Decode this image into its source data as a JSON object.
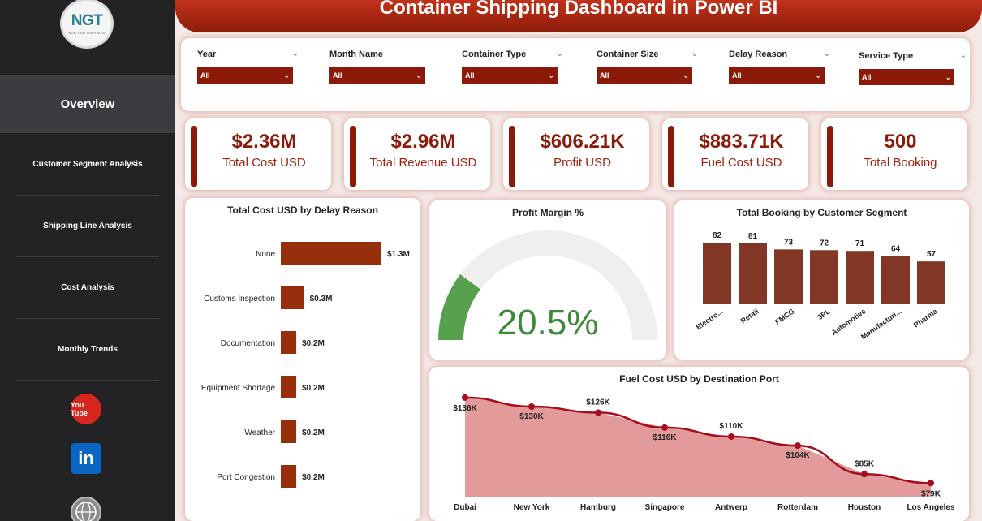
{
  "header": {
    "title": "Container Shipping Dashboard in Power BI"
  },
  "logo": {
    "brand": "NGT",
    "tagline": "NEXT GEN TEMPLATES"
  },
  "sidebar": {
    "active": "Overview",
    "items": [
      "Customer Segment Analysis",
      "Shipping Line Analysis",
      "Cost Analysis",
      "Monthly Trends"
    ],
    "social": {
      "youtube_text": "You Tube",
      "linkedin_text": "in"
    }
  },
  "filters": [
    {
      "label": "Year",
      "value": "All"
    },
    {
      "label": "Month Name",
      "value": "All"
    },
    {
      "label": "Container Type",
      "value": "All"
    },
    {
      "label": "Container Size",
      "value": "All"
    },
    {
      "label": "Delay Reason",
      "value": "All"
    },
    {
      "label": "Service Type",
      "value": "All"
    }
  ],
  "kpis": [
    {
      "value": "$2.36M",
      "label": "Total Cost USD"
    },
    {
      "value": "$2.96M",
      "label": "Total Revenue USD"
    },
    {
      "value": "$606.21K",
      "label": "Profit USD"
    },
    {
      "value": "$883.71K",
      "label": "Fuel Cost USD"
    },
    {
      "value": "500",
      "label": "Total Booking"
    }
  ],
  "colors": {
    "accent": "#8c1a08",
    "bar": "#972e0c",
    "column": "#823726",
    "gauge": "#56a04e",
    "area_fill": "#e29a9a",
    "line": "#a50e1e"
  },
  "chart_data": [
    {
      "type": "bar",
      "title": "Total Cost USD by Delay Reason",
      "categories": [
        "None",
        "Customs Inspection",
        "Documentation",
        "Equipment Shortage",
        "Weather",
        "Port Congestion"
      ],
      "values": [
        1.3,
        0.3,
        0.2,
        0.2,
        0.2,
        0.2
      ],
      "labels": [
        "$1.3M",
        "$0.3M",
        "$0.2M",
        "$0.2M",
        "$0.2M",
        "$0.2M"
      ],
      "unit": "M USD",
      "xlim": [
        0,
        1.3
      ]
    },
    {
      "type": "gauge",
      "title": "Profit Margin %",
      "value": 20.5,
      "label": "20.5%",
      "range": [
        0,
        100
      ]
    },
    {
      "type": "bar",
      "title": "Total Booking by Customer Segment",
      "categories": [
        "Electro...",
        "Retail",
        "FMCG",
        "3PL",
        "Automotive",
        "Manufacturi...",
        "Pharma"
      ],
      "values": [
        82,
        81,
        73,
        72,
        71,
        64,
        57
      ],
      "ylim": [
        0,
        82
      ]
    },
    {
      "type": "area",
      "title": "Fuel Cost USD by Destination Port",
      "categories": [
        "Dubai",
        "New York",
        "Hamburg",
        "Singapore",
        "Antwerp",
        "Rotterdam",
        "Houston",
        "Los Angeles"
      ],
      "values": [
        136,
        130,
        126,
        116,
        110,
        104,
        85,
        79
      ],
      "labels": [
        "$136K",
        "$130K",
        "$126K",
        "$116K",
        "$110K",
        "$104K",
        "$85K",
        "$79K"
      ],
      "unit": "K USD",
      "ylim": [
        0,
        140
      ]
    }
  ]
}
